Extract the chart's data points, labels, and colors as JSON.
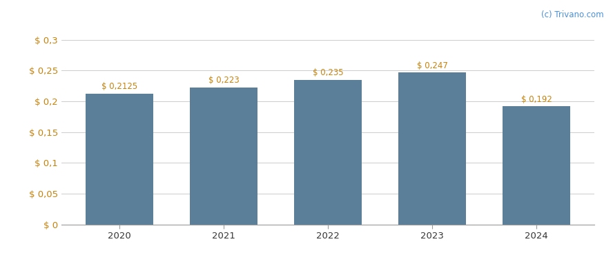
{
  "categories": [
    "2020",
    "2021",
    "2022",
    "2023",
    "2024"
  ],
  "values": [
    0.2125,
    0.223,
    0.235,
    0.247,
    0.192
  ],
  "labels": [
    "$ 0,2125",
    "$ 0,223",
    "$ 0,235",
    "$ 0,247",
    "$ 0,192"
  ],
  "bar_color": "#5b7f99",
  "background_color": "#ffffff",
  "ylim": [
    0,
    0.315
  ],
  "yticks": [
    0,
    0.05,
    0.1,
    0.15,
    0.2,
    0.25,
    0.3
  ],
  "ytick_labels": [
    "$ 0",
    "$ 0,05",
    "$ 0,1",
    "$ 0,15",
    "$ 0,2",
    "$ 0,25",
    "$ 0,3"
  ],
  "watermark": "(c) Trivano.com",
  "watermark_color": "#4a90d9",
  "grid_color": "#cccccc",
  "label_fontsize": 8.5,
  "tick_fontsize": 9.5,
  "bar_width": 0.65,
  "label_color": "#c8820a",
  "tick_color": "#c8820a"
}
